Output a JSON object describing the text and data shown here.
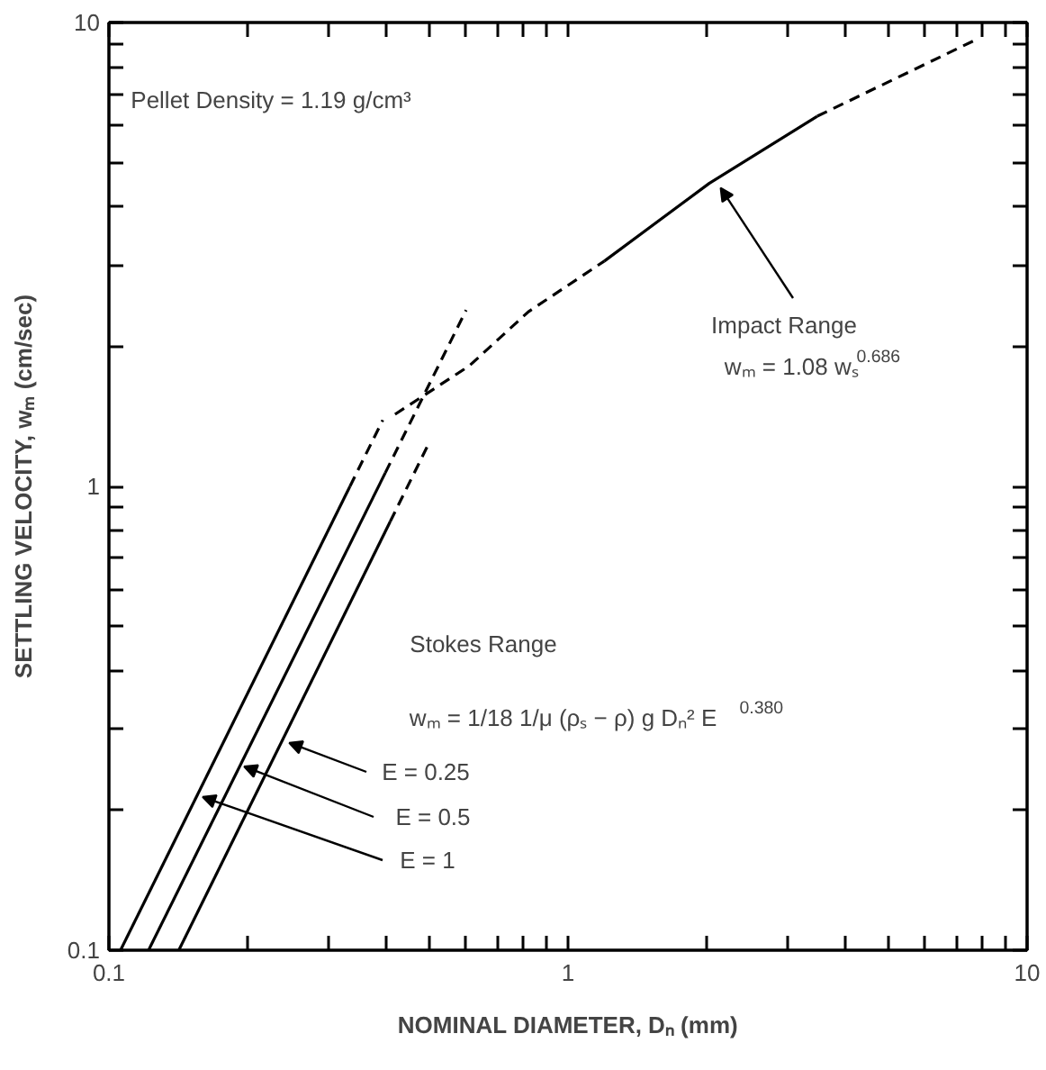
{
  "chart_data": {
    "type": "line",
    "xlabel": "NOMINAL DIAMETER, Dₙ (mm)",
    "ylabel": "SETTLING VELOCITY, wₘ (cm/sec)",
    "log": "xy",
    "xlim": [
      0.1,
      10
    ],
    "ylim": [
      0.1,
      10
    ],
    "xticks": [
      {
        "value": 0.1,
        "label": "0.1"
      },
      {
        "value": 0.2,
        "label": null
      },
      {
        "value": 0.3,
        "label": null
      },
      {
        "value": 0.4,
        "label": null
      },
      {
        "value": 0.5,
        "label": null
      },
      {
        "value": 0.6,
        "label": null
      },
      {
        "value": 0.7,
        "label": null
      },
      {
        "value": 0.8,
        "label": null
      },
      {
        "value": 0.9,
        "label": null
      },
      1,
      {
        "value": 2,
        "label": null
      },
      {
        "value": 3,
        "label": null
      },
      {
        "value": 4,
        "label": null
      },
      {
        "value": 5,
        "label": null
      },
      {
        "value": 6,
        "label": null
      },
      {
        "value": 7,
        "label": null
      },
      {
        "value": 8,
        "label": null
      },
      {
        "value": 9,
        "label": null
      },
      10
    ],
    "yticks": [
      {
        "value": 0.1,
        "label": "0.1"
      },
      {
        "value": 0.2,
        "label": null
      },
      {
        "value": 0.3,
        "label": null
      },
      {
        "value": 0.4,
        "label": null
      },
      {
        "value": 0.5,
        "label": null
      },
      {
        "value": 0.6,
        "label": null
      },
      {
        "value": 0.7,
        "label": null
      },
      {
        "value": 0.8,
        "label": null
      },
      {
        "value": 0.9,
        "label": null
      },
      1,
      {
        "value": 2,
        "label": null
      },
      {
        "value": 3,
        "label": null
      },
      {
        "value": 4,
        "label": null
      },
      {
        "value": 5,
        "label": null
      },
      {
        "value": 6,
        "label": null
      },
      {
        "value": 7,
        "label": null
      },
      {
        "value": 8,
        "label": null
      },
      {
        "value": 9,
        "label": null
      },
      10
    ],
    "series": [
      {
        "color": "#000000",
        "line_style": "solid",
        "x": [
          0.106,
          0.335
        ],
        "values": [
          0.1,
          1.0
        ]
      },
      {
        "color": "#000000",
        "line_style": "dashed",
        "x": [
          0.335,
          0.395
        ],
        "values": [
          1.0,
          1.39
        ]
      },
      {
        "color": "#000000",
        "line_style": "solid",
        "x": [
          0.122,
          0.4
        ],
        "values": [
          0.1,
          1.07
        ]
      },
      {
        "color": "#000000",
        "line_style": "dashed",
        "x": [
          0.4,
          0.6
        ],
        "values": [
          1.07,
          2.4
        ]
      },
      {
        "color": "#000000",
        "line_style": "solid",
        "x": [
          0.142,
          0.41
        ],
        "values": [
          0.1,
          0.84
        ]
      },
      {
        "color": "#000000",
        "line_style": "dashed",
        "x": [
          0.41,
          0.5
        ],
        "values": [
          0.84,
          1.25
        ]
      },
      {
        "color": "#000000",
        "line_style": "dashed",
        "x": [
          0.42,
          0.61,
          0.82,
          1.2
        ],
        "values": [
          1.43,
          1.82,
          2.38,
          3.06
        ]
      },
      {
        "color": "#000000",
        "line_style": "solid",
        "x": [
          1.2,
          2.03,
          3.49
        ],
        "values": [
          3.06,
          4.5,
          6.28
        ]
      },
      {
        "color": "#000000",
        "line_style": "dashed",
        "x": [
          3.49,
          7.77
        ],
        "values": [
          6.28,
          9.2
        ]
      }
    ],
    "annotations": [
      "Pellet Density = 1.19 g/cm³",
      {
        "text": "Impact Range",
        "x": 2.15,
        "y": 4.4
      },
      "wₘ = 1.08 wₛ$^{0.686}$",
      "Stokes Range",
      "wₘ = 1/18 1/μ (ρₛ − ρ) g Dₙ² E$^{0.380}$",
      {
        "text": "E = 0.25",
        "x": 0.247,
        "y": 0.28
      },
      {
        "text": "E = 0.5",
        "x": 0.197,
        "y": 0.249
      },
      {
        "text": "E = 1",
        "x": 0.16,
        "y": 0.214
      }
    ]
  }
}
